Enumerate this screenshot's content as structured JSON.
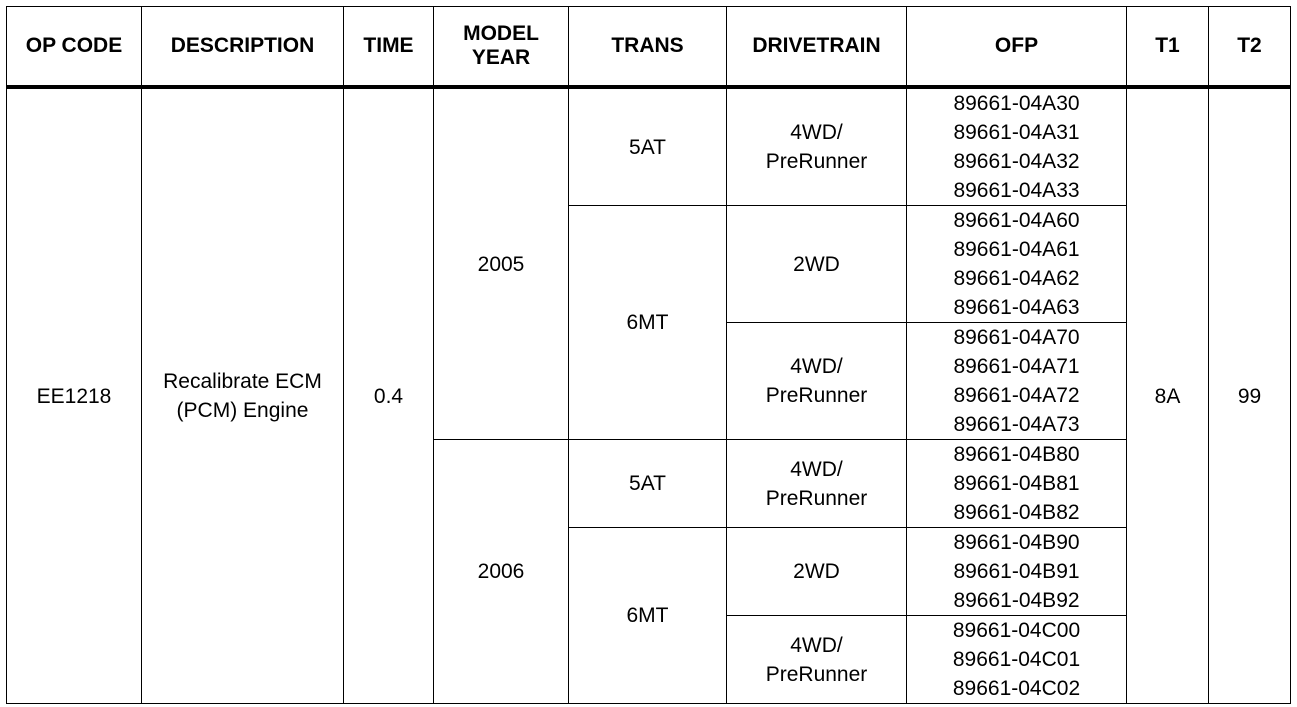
{
  "header": {
    "columns": [
      "OP CODE",
      "DESCRIPTION",
      "TIME",
      "MODEL YEAR",
      "TRANS",
      "DRIVETRAIN",
      "OFP",
      "T1",
      "T2"
    ]
  },
  "table": {
    "op_code": "EE1218",
    "description": "Recalibrate ECM (PCM) Engine",
    "time": "0.4",
    "t1": "8A",
    "t2": "99",
    "years": [
      {
        "year": "2005",
        "trans": [
          {
            "name": "5AT",
            "drivetrains": [
              {
                "name": "4WD/\nPreRunner",
                "ofp": [
                  "89661-04A30",
                  "89661-04A31",
                  "89661-04A32",
                  "89661-04A33"
                ]
              }
            ]
          },
          {
            "name": "6MT",
            "drivetrains": [
              {
                "name": "2WD",
                "ofp": [
                  "89661-04A60",
                  "89661-04A61",
                  "89661-04A62",
                  "89661-04A63"
                ]
              },
              {
                "name": "4WD/\nPreRunner",
                "ofp": [
                  "89661-04A70",
                  "89661-04A71",
                  "89661-04A72",
                  "89661-04A73"
                ]
              }
            ]
          }
        ]
      },
      {
        "year": "2006",
        "trans": [
          {
            "name": "5AT",
            "drivetrains": [
              {
                "name": "4WD/\nPreRunner",
                "ofp": [
                  "89661-04B80",
                  "89661-04B81",
                  "89661-04B82"
                ]
              }
            ]
          },
          {
            "name": "6MT",
            "drivetrains": [
              {
                "name": "2WD",
                "ofp": [
                  "89661-04B90",
                  "89661-04B91",
                  "89661-04B92"
                ]
              },
              {
                "name": "4WD/\nPreRunner",
                "ofp": [
                  "89661-04C00",
                  "89661-04C01",
                  "89661-04C02"
                ]
              }
            ]
          }
        ]
      }
    ]
  }
}
